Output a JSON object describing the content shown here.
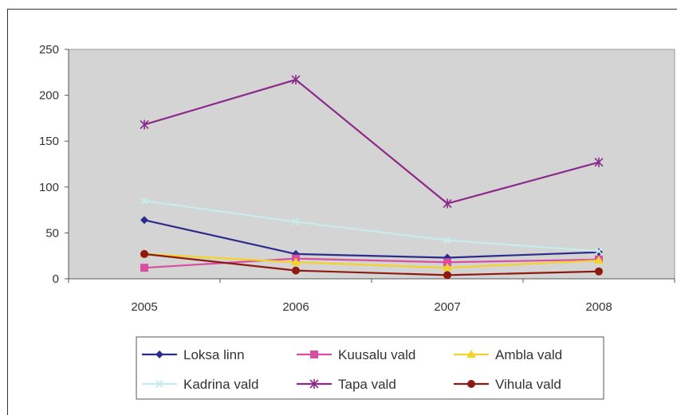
{
  "chart_data": {
    "type": "line",
    "title": "",
    "xlabel": "",
    "ylabel": "",
    "categories": [
      "2005",
      "2006",
      "2007",
      "2008"
    ],
    "ylim": [
      0,
      250
    ],
    "yticks": [
      "0",
      "50",
      "100",
      "150",
      "200",
      "250"
    ],
    "grid": false,
    "plot_background": "#d4d4d4",
    "legend_position": "bottom",
    "series": [
      {
        "name": "Loksa linn",
        "values": [
          64,
          27,
          23,
          29
        ],
        "color": "#2c2c8c",
        "marker": "diamond"
      },
      {
        "name": "Kuusalu vald",
        "values": [
          12,
          22,
          18,
          21
        ],
        "color": "#d64fa0",
        "marker": "square"
      },
      {
        "name": "Ambla vald",
        "values": [
          27,
          18,
          12,
          20
        ],
        "color": "#f5d22a",
        "marker": "triangle"
      },
      {
        "name": "Kadrina vald",
        "values": [
          85,
          62,
          42,
          30
        ],
        "color": "#c8ecec",
        "marker": "x"
      },
      {
        "name": "Tapa vald",
        "values": [
          168,
          217,
          82,
          127
        ],
        "color": "#8c2a8c",
        "marker": "star"
      },
      {
        "name": "Vihula vald",
        "values": [
          27,
          9,
          4,
          8
        ],
        "color": "#8c1a10",
        "marker": "circle"
      }
    ]
  }
}
